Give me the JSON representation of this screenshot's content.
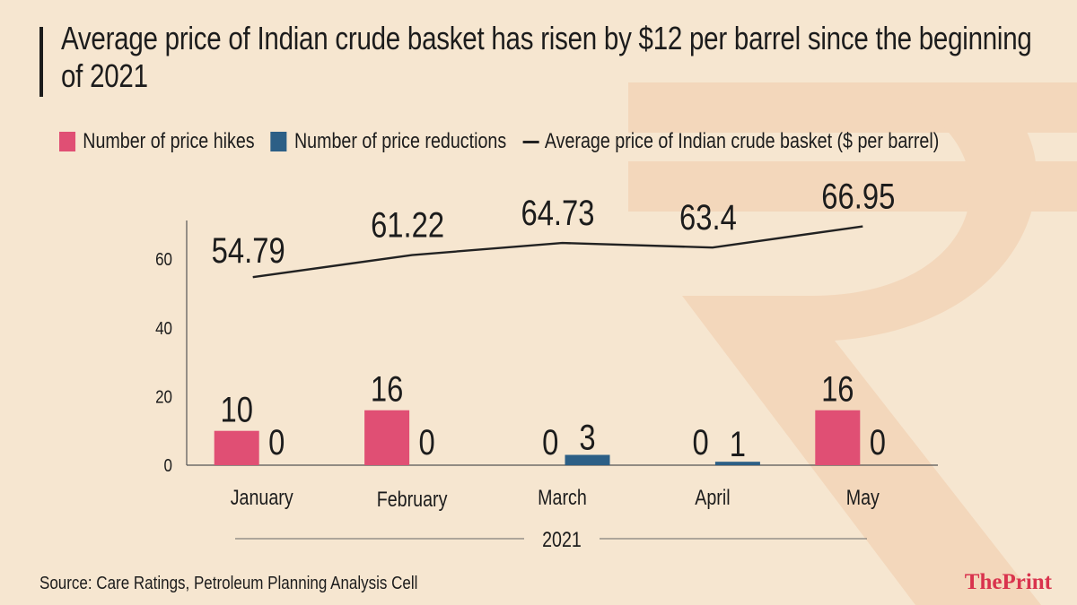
{
  "header": {
    "title": "Average price of Indian crude basket has risen by $12 per barrel since the beginning of 2021"
  },
  "legend": {
    "hikes": "Number of price hikes",
    "reductions": "Number of price reductions",
    "price": "Average price of Indian crude basket ($ per barrel)"
  },
  "colors": {
    "hikes": "#e04f74",
    "reductions": "#2c5f86",
    "line": "#222222",
    "background": "#f6e6d0",
    "rupee": "#f3d9bf"
  },
  "chart_data": {
    "type": "bar",
    "categories": [
      "January",
      "February",
      "March",
      "April",
      "May"
    ],
    "series": [
      {
        "name": "Number of price hikes",
        "type": "bar",
        "values": [
          10,
          16,
          0,
          0,
          16
        ]
      },
      {
        "name": "Number of price reductions",
        "type": "bar",
        "values": [
          0,
          0,
          3,
          1,
          0
        ]
      },
      {
        "name": "Average price of Indian crude basket ($ per barrel)",
        "type": "line",
        "values": [
          54.79,
          61.22,
          64.73,
          63.4,
          66.95
        ]
      }
    ],
    "y_ticks": [
      "0",
      "20",
      "40",
      "60"
    ],
    "ylim": [
      0,
      70
    ],
    "xlabel": "2021",
    "value_labels": {
      "hikes": [
        "10",
        "16",
        "0",
        "0",
        "16"
      ],
      "reductions": [
        "0",
        "0",
        "3",
        "1",
        "0"
      ],
      "price": [
        "54.79",
        "61.22",
        "64.73",
        "63.4",
        "66.95"
      ]
    },
    "grid": false
  },
  "footer": {
    "source": "Source: Care Ratings, Petroleum Planning Analysis Cell",
    "logo_the": "The",
    "logo_print": "Print"
  }
}
